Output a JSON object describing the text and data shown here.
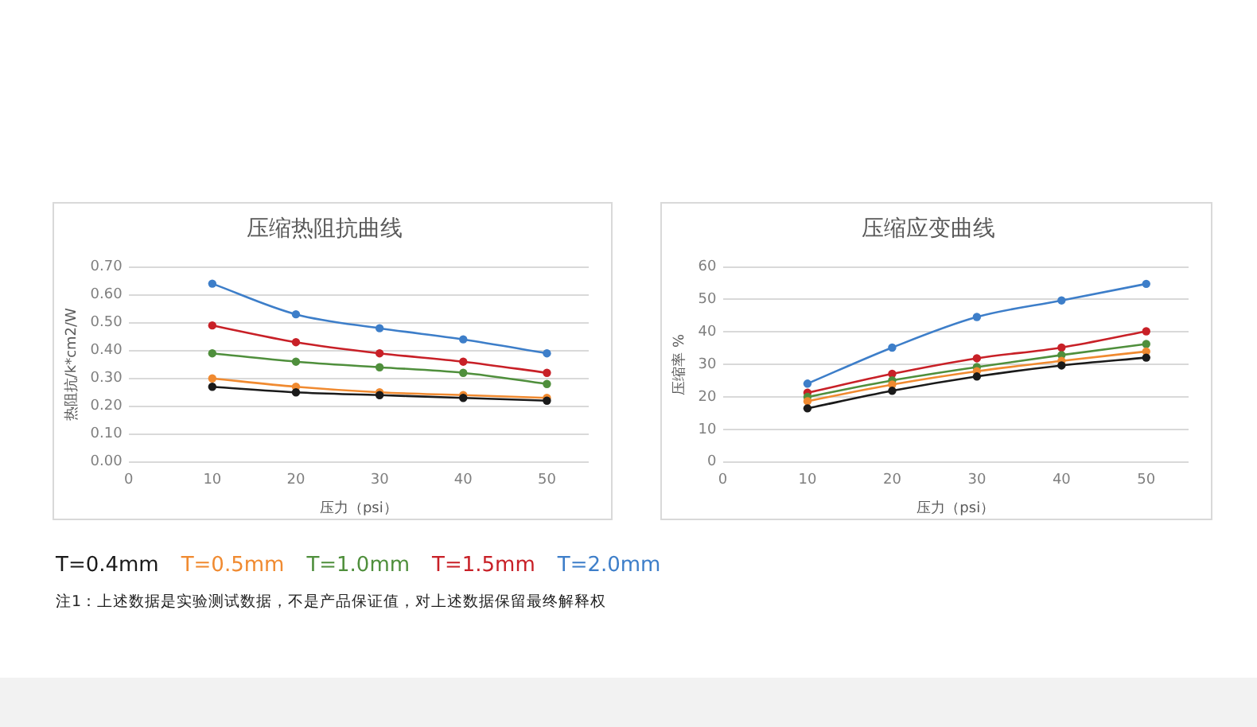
{
  "chart_data": [
    {
      "type": "line",
      "title": "压缩热阻抗曲线",
      "xlabel": "压力（psi）",
      "ylabel": "热阻抗/k*cm2/W",
      "x": [
        10,
        20,
        30,
        40,
        50
      ],
      "series": [
        {
          "name": "T=0.4mm",
          "color": "#1a1a1a",
          "values": [
            0.27,
            0.25,
            0.24,
            0.23,
            0.22
          ]
        },
        {
          "name": "T=0.5mm",
          "color": "#f08a30",
          "values": [
            0.3,
            0.27,
            0.25,
            0.24,
            0.23
          ]
        },
        {
          "name": "T=1.0mm",
          "color": "#4f8f3c",
          "values": [
            0.39,
            0.36,
            0.34,
            0.32,
            0.28
          ]
        },
        {
          "name": "T=1.5mm",
          "color": "#c82027",
          "values": [
            0.49,
            0.43,
            0.39,
            0.36,
            0.32
          ]
        },
        {
          "name": "T=2.0mm",
          "color": "#3d7ec9",
          "values": [
            0.64,
            0.53,
            0.48,
            0.44,
            0.39
          ]
        }
      ],
      "xlim": [
        0,
        55
      ],
      "xticks": [
        0,
        10,
        20,
        30,
        40,
        50
      ],
      "ylim": [
        0,
        0.7
      ],
      "yticks": [
        {
          "value": 0,
          "label": "0.00"
        },
        {
          "value": 0.1,
          "label": "0.10"
        },
        {
          "value": 0.2,
          "label": "0.20"
        },
        {
          "value": 0.3,
          "label": "0.30"
        },
        {
          "value": 0.4,
          "label": "0.40"
        },
        {
          "value": 0.5,
          "label": "0.50"
        },
        {
          "value": 0.6,
          "label": "0.60"
        },
        {
          "value": 0.7,
          "label": "0.70"
        }
      ],
      "grid": "y",
      "legend": "bottom",
      "marker": "circle",
      "line_style": "solid",
      "annotations": [
        "注1：上述数据是实验测试数据，不是产品保证值，对上述数据保留最终解释权"
      ]
    },
    {
      "type": "line",
      "title": "压缩应变曲线",
      "xlabel": "压力（psi）",
      "ylabel": "压缩率 %",
      "x": [
        10,
        20,
        30,
        40,
        50
      ],
      "series": [
        {
          "color": "#1a1a1a",
          "values": [
            16.5,
            21.9,
            26.3,
            29.7,
            32.1
          ]
        },
        {
          "color": "#f08a30",
          "values": [
            18.7,
            23.8,
            27.9,
            31.1,
            34
          ]
        },
        {
          "color": "#4f8f3c",
          "values": [
            20,
            25.1,
            29.2,
            32.9,
            36.3
          ]
        },
        {
          "color": "#c82027",
          "values": [
            21.3,
            27.1,
            31.9,
            35.2,
            40.2
          ]
        },
        {
          "color": "#3d7ec9",
          "values": [
            24.1,
            35.2,
            44.6,
            49.7,
            54.8
          ]
        }
      ],
      "xlim": [
        0,
        55
      ],
      "xticks": [
        0,
        10,
        20,
        30,
        40,
        50
      ],
      "ylim": [
        0,
        60
      ],
      "yticks": [
        0,
        10,
        20,
        30,
        40,
        50,
        60
      ],
      "grid": "y",
      "marker": "circle",
      "line_style": "solid"
    }
  ]
}
